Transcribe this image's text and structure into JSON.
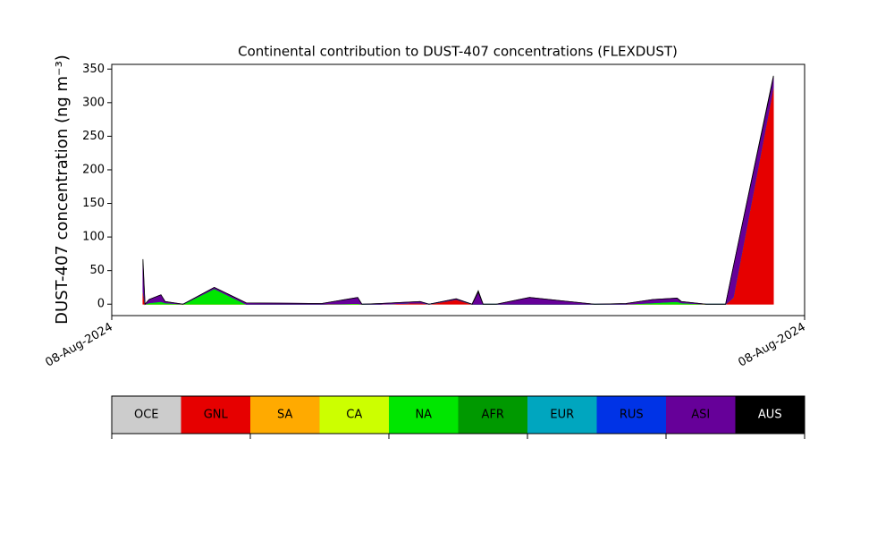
{
  "chart_data": {
    "type": "stacked_area",
    "title": "Continental contribution to DUST-407 concentrations (FLEXDUST)",
    "y_label": "DUST-407 concentration (ng m⁻³)",
    "x": [
      0.045,
      0.048,
      0.054,
      0.071,
      0.077,
      0.103,
      0.148,
      0.194,
      0.303,
      0.355,
      0.361,
      0.387,
      0.445,
      0.458,
      0.497,
      0.52,
      0.529,
      0.536,
      0.555,
      0.603,
      0.697,
      0.742,
      0.781,
      0.816,
      0.822,
      0.858,
      0.886,
      0.897,
      0.955
    ],
    "xlim": [
      0,
      1
    ],
    "xticks": [
      {
        "value": 0,
        "label": "08-Aug-2024"
      },
      {
        "value": 1,
        "label": "08-Aug-2024"
      }
    ],
    "ylim": [
      -17,
      357
    ],
    "yticks": [
      0,
      50,
      100,
      150,
      200,
      250,
      300,
      350
    ],
    "series": [
      {
        "name": "OCE",
        "color": "#cccccc",
        "values": [
          0,
          0,
          0,
          0,
          0,
          0,
          0,
          0,
          0,
          0,
          0,
          0,
          0,
          0,
          0,
          0,
          0,
          0,
          0,
          0,
          0,
          0,
          0,
          0,
          0,
          0,
          0,
          0,
          0
        ]
      },
      {
        "name": "GNL",
        "color": "#e60000",
        "values": [
          20,
          0,
          0,
          0,
          0,
          0,
          0,
          0,
          0,
          0,
          0,
          0,
          2,
          0,
          7,
          0,
          0,
          0,
          0,
          0,
          0,
          0,
          0,
          0,
          0,
          0,
          0,
          10,
          324
        ]
      },
      {
        "name": "SA",
        "color": "#ffaa00",
        "values": [
          0,
          0,
          0,
          0,
          0,
          0,
          0,
          0,
          0,
          0,
          0,
          0,
          0,
          0,
          0,
          0,
          0,
          0,
          0,
          0,
          0,
          0,
          0,
          0,
          0,
          0,
          0,
          0,
          0
        ]
      },
      {
        "name": "CA",
        "color": "#ccff00",
        "values": [
          0,
          0,
          0,
          0,
          0,
          0,
          0,
          0,
          0,
          0,
          0,
          0,
          0,
          0,
          0,
          0,
          0,
          0,
          0,
          0,
          0,
          0,
          0,
          0,
          0,
          0,
          0,
          0,
          0
        ]
      },
      {
        "name": "NA",
        "color": "#00e600",
        "values": [
          0,
          0,
          2,
          4,
          2,
          0,
          23,
          0,
          0,
          1,
          0,
          0,
          0,
          0,
          0,
          0,
          0,
          0,
          0,
          0,
          0,
          0,
          2,
          4,
          2,
          0,
          0,
          0,
          0
        ]
      },
      {
        "name": "AFR",
        "color": "#009900",
        "values": [
          0,
          0,
          0,
          0,
          0,
          0,
          0,
          0,
          0,
          0,
          0,
          0,
          0,
          0,
          0,
          0,
          0,
          0,
          0,
          0,
          0,
          0,
          0,
          0,
          0,
          0,
          0,
          0,
          0
        ]
      },
      {
        "name": "EUR",
        "color": "#00a6bf",
        "values": [
          0,
          0,
          0,
          0,
          0,
          0,
          0,
          0,
          0,
          0,
          0,
          0,
          0,
          0,
          0,
          0,
          0,
          0,
          0,
          0,
          0,
          0,
          0,
          0,
          0,
          0,
          0,
          0,
          0
        ]
      },
      {
        "name": "RUS",
        "color": "#0033e6",
        "values": [
          0,
          0,
          0,
          0,
          0,
          0,
          0,
          0,
          0,
          0,
          0,
          0,
          0,
          0,
          0,
          0,
          0,
          0,
          0,
          0,
          0,
          0,
          0,
          0,
          0,
          0,
          0,
          0,
          0
        ]
      },
      {
        "name": "ASI",
        "color": "#660099",
        "values": [
          40,
          0,
          5,
          10,
          2,
          0,
          2,
          2,
          1,
          9,
          0,
          1,
          2,
          0,
          1,
          0,
          18,
          0,
          0,
          10,
          0,
          1,
          5,
          5,
          2,
          0,
          0,
          45,
          14
        ]
      },
      {
        "name": "AUS",
        "color": "#000000",
        "values": [
          7,
          0,
          0,
          0,
          0,
          0,
          0,
          0,
          0,
          0,
          0,
          0,
          0,
          0,
          0,
          0,
          2,
          0,
          0,
          0,
          0,
          0,
          0,
          0,
          0,
          0,
          0,
          0,
          2
        ]
      }
    ]
  }
}
